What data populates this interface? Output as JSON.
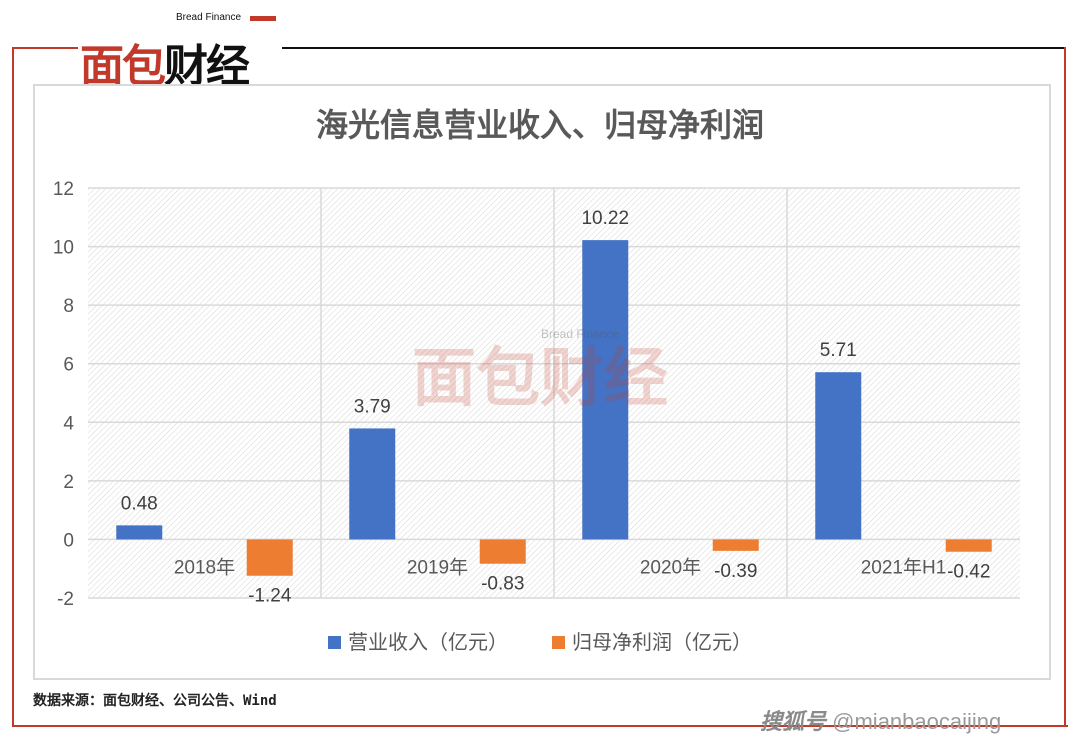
{
  "brand": {
    "logo_cn": [
      "面包",
      "财经"
    ],
    "logo_en": "Bread Finance",
    "watermark_cn": "面包财经",
    "watermark_en": "Bread Finance"
  },
  "colors": {
    "revenue": "#4472c4",
    "profit": "#ed7d31",
    "brand_red": "#c0392b"
  },
  "source_note": "数据来源：面包财经、公司公告、Wind",
  "footer_watermark": {
    "platform": "搜狐号",
    "handle": "@mianbaocaijing"
  },
  "chart_data": {
    "type": "bar",
    "title": "海光信息营业收入、归母净利润",
    "categories": [
      "2018年",
      "2019年",
      "2020年",
      "2021年H1"
    ],
    "series": [
      {
        "name": "营业收入（亿元）",
        "values": [
          0.48,
          3.79,
          10.22,
          5.71
        ],
        "labels": [
          "0.48",
          "3.79",
          "10.22",
          "5.71"
        ]
      },
      {
        "name": "归母净利润（亿元）",
        "values": [
          -1.24,
          -0.83,
          -0.39,
          -0.42
        ],
        "labels": [
          "-1.24",
          "-0.83",
          "-0.39",
          "-0.42"
        ]
      }
    ],
    "ylim": [
      -2,
      12
    ],
    "yticks": [
      "-2",
      "0",
      "2",
      "4",
      "6",
      "8",
      "10",
      "12"
    ],
    "grid": true,
    "legend_position": "bottom"
  }
}
